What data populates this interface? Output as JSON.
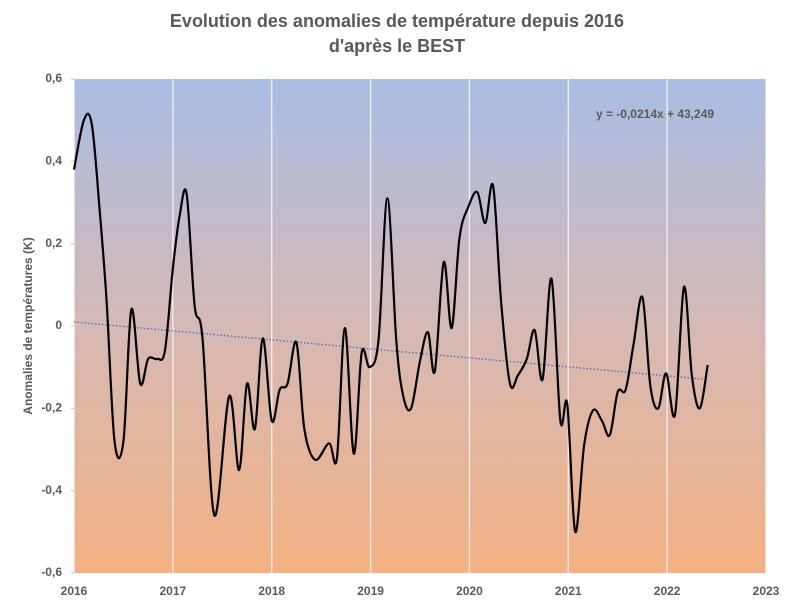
{
  "chart_data": {
    "type": "line",
    "title": [
      "Evolution des anomalies de température depuis 2016",
      "d'après le BEST"
    ],
    "ylabel": "Anomalies de températures (K)",
    "annotation": "y = -0,0214x + 43,249",
    "xlim": [
      2016,
      2023
    ],
    "xticks": [
      2016,
      2017,
      2018,
      2019,
      2020,
      2021,
      2022,
      2023
    ],
    "ylim": [
      -0.6,
      0.6
    ],
    "yticks": [
      {
        "value": -0.6,
        "label": "-0,6"
      },
      {
        "value": -0.4,
        "label": "-0,4"
      },
      {
        "value": -0.2,
        "label": "-0,2"
      },
      0,
      {
        "value": 0.2,
        "label": "0,2"
      },
      {
        "value": 0.4,
        "label": "0,4"
      },
      {
        "value": 0.6,
        "label": "0,6"
      }
    ],
    "grid": "x",
    "color": "#000000",
    "x": [
      2016.0,
      2016.1,
      2016.18,
      2016.26,
      2016.33,
      2016.41,
      2016.5,
      2016.58,
      2016.67,
      2016.75,
      2016.84,
      2016.92,
      2017.0,
      2017.07,
      2017.14,
      2017.22,
      2017.3,
      2017.42,
      2017.57,
      2017.67,
      2017.75,
      2017.83,
      2017.91,
      2018.0,
      2018.08,
      2018.16,
      2018.25,
      2018.33,
      2018.44,
      2018.58,
      2018.66,
      2018.74,
      2018.83,
      2018.91,
      2018.99,
      2019.08,
      2019.17,
      2019.26,
      2019.33,
      2019.41,
      2019.5,
      2019.58,
      2019.65,
      2019.74,
      2019.82,
      2019.9,
      2019.99,
      2020.08,
      2020.16,
      2020.24,
      2020.32,
      2020.41,
      2020.49,
      2020.58,
      2020.66,
      2020.74,
      2020.83,
      2020.92,
      2020.99,
      2021.07,
      2021.16,
      2021.25,
      2021.34,
      2021.42,
      2021.5,
      2021.58,
      2021.66,
      2021.75,
      2021.83,
      2021.91,
      2021.99,
      2022.08,
      2022.17,
      2022.25,
      2022.33,
      2022.41
    ],
    "values": [
      0.38,
      0.5,
      0.49,
      0.28,
      0.06,
      -0.28,
      -0.28,
      0.04,
      -0.14,
      -0.08,
      -0.08,
      -0.06,
      0.14,
      0.27,
      0.32,
      0.05,
      -0.03,
      -0.46,
      -0.17,
      -0.35,
      -0.14,
      -0.25,
      -0.03,
      -0.23,
      -0.155,
      -0.14,
      -0.04,
      -0.25,
      -0.325,
      -0.285,
      -0.32,
      -0.005,
      -0.31,
      -0.065,
      -0.1,
      -0.035,
      0.31,
      -0.035,
      -0.17,
      -0.2,
      -0.085,
      -0.015,
      -0.11,
      0.155,
      -0.005,
      0.215,
      0.29,
      0.325,
      0.25,
      0.34,
      0.06,
      -0.14,
      -0.12,
      -0.08,
      -0.01,
      -0.13,
      0.115,
      -0.23,
      -0.19,
      -0.5,
      -0.29,
      -0.205,
      -0.23,
      -0.265,
      -0.16,
      -0.155,
      -0.045,
      0.07,
      -0.145,
      -0.2,
      -0.115,
      -0.215,
      0.095,
      -0.12,
      -0.2,
      -0.095
    ],
    "trendline": {
      "color": "#4472c4",
      "x": [
        2016,
        2022.41
      ],
      "values": [
        0.01,
        -0.13
      ]
    }
  }
}
